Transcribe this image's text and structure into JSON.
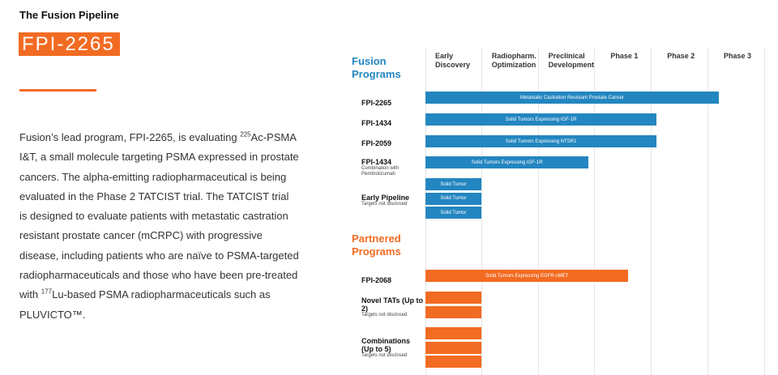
{
  "eyebrow": "The Fusion Pipeline",
  "program_title": "FPI-2265",
  "description": {
    "p1": "Fusion’s lead program, FPI-2265, is evaluating ",
    "sup1": "225",
    "p2": "Ac-PSMA I&T, a small molecule targeting PSMA expressed in prostate cancers. The alpha-emitting radiopharmaceutical is being evaluated in the Phase 2 TATCIST trial. The TATCIST trial is designed to evaluate patients with metastatic castration resistant prostate cancer (mCRPC) with progressive disease, including patients who are naïve to PSMA-targeted radiopharmaceuticals and those who have been pre-treated with ",
    "sup2": "177",
    "p3": "Lu-based PSMA radiopharmaceuticals such as PLUVICTO™."
  },
  "colors": {
    "accent": "#f26b22",
    "blue": "#2386c0",
    "orange": "#f26b22"
  },
  "chart_data": {
    "type": "bar",
    "orientation": "horizontal",
    "stages": [
      "Early Discovery",
      "Radiopharm. Optimization",
      "Preclinical Development",
      "Phase 1",
      "Phase 2",
      "Phase 3"
    ],
    "sections": [
      {
        "title_line1": "Fusion",
        "title_line2": "Programs",
        "color": "#2386c0",
        "rows": [
          {
            "name": "FPI-2265",
            "sub": "",
            "bars": [
              {
                "label": "Metastatic Castration Resistant Prostate Cancer",
                "progress": 5.2
              }
            ]
          },
          {
            "name": "FPI-1434",
            "sub": "",
            "bars": [
              {
                "label": "Solid Tumors Expressing IGF-1R",
                "progress": 4.1
              }
            ]
          },
          {
            "name": "FPI-2059",
            "sub": "",
            "bars": [
              {
                "label": "Solid Tumors Expressing NTSR1",
                "progress": 4.1
              }
            ]
          },
          {
            "name": "FPI-1434",
            "sub": "Combination with Pembrolizumab",
            "bars": [
              {
                "label": "Solid Tumors Expressing IGF-1R",
                "progress": 2.9
              }
            ]
          },
          {
            "name": "Early Pipeline",
            "sub": "Targets not disclosed",
            "bars": [
              {
                "label": "Solid Tumor",
                "progress": 1.0
              },
              {
                "label": "Solid Tumor",
                "progress": 1.0
              },
              {
                "label": "Solid Tumor",
                "progress": 1.0
              }
            ]
          }
        ]
      },
      {
        "title_line1": "Partnered",
        "title_line2": "Programs",
        "color": "#f26b22",
        "rows": [
          {
            "name": "FPI-2068",
            "sub": "",
            "bars": [
              {
                "label": "Solid Tumors Expressing EGFR-cMET",
                "progress": 3.6
              }
            ]
          },
          {
            "name": "Novel TATs (Up to 2)",
            "sub": "Targets not disclosed",
            "bars": [
              {
                "label": "",
                "progress": 1.0
              },
              {
                "label": "",
                "progress": 1.0
              }
            ]
          },
          {
            "name": "Combinations (Up to 5)",
            "sub": "Targets not disclosed",
            "bars": [
              {
                "label": "",
                "progress": 1.0
              },
              {
                "label": "",
                "progress": 1.0
              },
              {
                "label": "",
                "progress": 1.0
              }
            ]
          }
        ]
      }
    ]
  }
}
